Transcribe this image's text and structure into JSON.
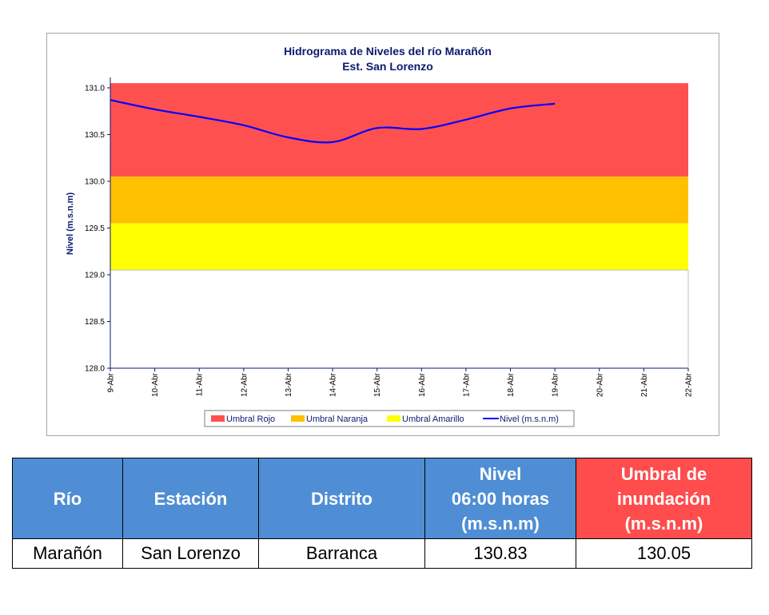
{
  "chart_data": {
    "type": "line",
    "title": "Hidrograma de Niveles del río Marañón",
    "subtitle": "Est. San Lorenzo",
    "ylabel": "Nivel (m.s.n.m)",
    "xlabel": "",
    "ylim": [
      128.0,
      131.0
    ],
    "yticks": [
      "131.0",
      "130.5",
      "130.0",
      "129.5",
      "129.0",
      "128.5",
      "128.0"
    ],
    "ytick_values": [
      131.0,
      130.5,
      130.0,
      129.5,
      129.0,
      128.5,
      128.0
    ],
    "categories": [
      "9-Abr",
      "10-Abr",
      "11-Abr",
      "12-Abr",
      "13-Abr",
      "14-Abr",
      "15-Abr",
      "16-Abr",
      "17-Abr",
      "18-Abr",
      "19-Abr",
      "20-Abr",
      "21-Abr",
      "22-Abr"
    ],
    "bands": [
      {
        "name": "Umbral Rojo",
        "from": 130.05,
        "to": 131.05,
        "color": "#ff5050"
      },
      {
        "name": "Umbral Naranja",
        "from": 129.55,
        "to": 130.05,
        "color": "#ffc000"
      },
      {
        "name": "Umbral Amarillo",
        "from": 129.05,
        "to": 129.55,
        "color": "#ffff00"
      }
    ],
    "series": [
      {
        "name": "Nivel (m.s.n.m)",
        "color": "#0000ff",
        "x": [
          "9-Abr",
          "10-Abr",
          "11-Abr",
          "12-Abr",
          "13-Abr",
          "14-Abr",
          "15-Abr",
          "16-Abr",
          "17-Abr",
          "18-Abr",
          "19-Abr"
        ],
        "values": [
          130.87,
          130.77,
          130.69,
          130.6,
          130.47,
          130.42,
          130.57,
          130.56,
          130.66,
          130.78,
          130.83
        ]
      }
    ],
    "legend_position": "bottom",
    "grid": false
  },
  "table": {
    "headers": {
      "rio": "Río",
      "estacion": "Estación",
      "distrito": "Distrito",
      "nivel": [
        "Nivel",
        "06:00 horas",
        "(m.s.n.m)"
      ],
      "umbral": [
        "Umbral de",
        "inundación",
        "(m.s.n.m)"
      ]
    },
    "row": {
      "rio": "Marañón",
      "estacion": "San Lorenzo",
      "distrito": "Barranca",
      "nivel": "130.83",
      "umbral": "130.05"
    }
  }
}
